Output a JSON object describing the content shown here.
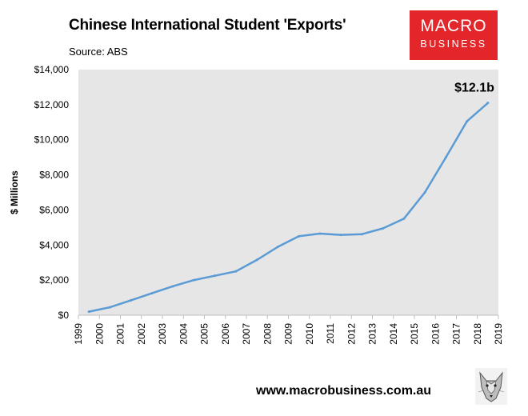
{
  "header": {
    "title": "Chinese International Student 'Exports'",
    "source": "Source: ABS"
  },
  "logo": {
    "line1": "MACRO",
    "line2": "BUSINESS",
    "color": "#e3262a"
  },
  "footer": {
    "url": "www.macrobusiness.com.au",
    "icon": "wolf-icon"
  },
  "chart_data": {
    "type": "line",
    "title": "Chinese International Student 'Exports'",
    "ylabel": "$ Millions",
    "xlabel": "",
    "ylim": [
      0,
      14000
    ],
    "xlim": [
      1999,
      2019
    ],
    "x_ticks": [
      "1999",
      "2000",
      "2001",
      "2002",
      "2003",
      "2004",
      "2005",
      "2006",
      "2007",
      "2008",
      "2009",
      "2010",
      "2011",
      "2012",
      "2013",
      "2014",
      "2015",
      "2016",
      "2017",
      "2018",
      "2019"
    ],
    "y_ticks": [
      "$0",
      "$2,000",
      "$4,000",
      "$6,000",
      "$8,000",
      "$10,000",
      "$12,000",
      "$14,000"
    ],
    "y_tick_values": [
      0,
      2000,
      4000,
      6000,
      8000,
      10000,
      12000,
      14000
    ],
    "grid": false,
    "plot_background": "#e6e6e6",
    "series": [
      {
        "color": "#5b9bd5",
        "x": [
          1999.5,
          2000.5,
          2001.5,
          2002.5,
          2003.5,
          2004.5,
          2005.5,
          2006.5,
          2007.5,
          2008.5,
          2009.5,
          2010.5,
          2011.5,
          2012.5,
          2013.5,
          2014.5,
          2015.5,
          2016.5,
          2017.5,
          2018.5
        ],
        "values": [
          200,
          450,
          850,
          1250,
          1650,
          2000,
          2250,
          2500,
          3150,
          3900,
          4500,
          4650,
          4580,
          4620,
          4950,
          5500,
          7000,
          9000,
          11050,
          12100
        ]
      }
    ],
    "annotations": [
      {
        "text": "$12.1b",
        "x": 2018.5,
        "y": 12100
      }
    ]
  }
}
